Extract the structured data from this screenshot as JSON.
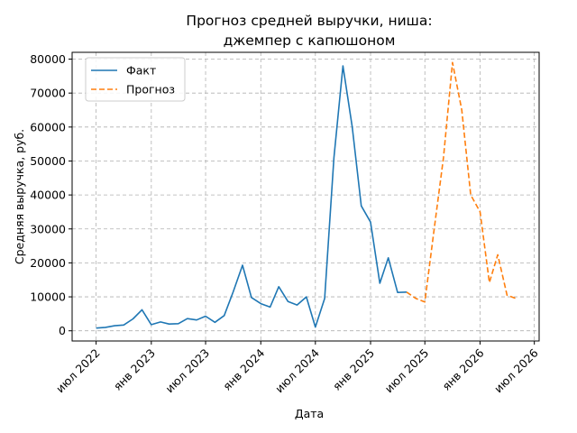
{
  "chart_data": {
    "type": "line",
    "title_lines": [
      "Прогноз средней выручки, ниша:",
      "джемпер с капюшоном"
    ],
    "xlabel": "Дата",
    "ylabel": "Средняя выручка, руб.",
    "x_ticks": [
      "2022-07-01",
      "2023-01-01",
      "2023-07-01",
      "2024-01-01",
      "2024-07-01",
      "2025-01-01",
      "2025-07-01",
      "2026-01-01",
      "2026-07-01"
    ],
    "x_tick_labels": [
      "июл 2022",
      "янв 2023",
      "июл 2023",
      "янв 2024",
      "июл 2024",
      "янв 2025",
      "июл 2025",
      "янв 2026",
      "июл 2026"
    ],
    "xlim": [
      "2022-04-12",
      "2026-07-17"
    ],
    "y_ticks": [
      0,
      10000,
      20000,
      30000,
      40000,
      50000,
      60000,
      70000,
      80000
    ],
    "y_tick_labels": [
      "0",
      "10000",
      "20000",
      "30000",
      "40000",
      "50000",
      "60000",
      "70000",
      "80000"
    ],
    "ylim": [
      -3000,
      82000
    ],
    "grid": true,
    "legend_position": "top-left",
    "series": [
      {
        "name": "Факт",
        "color": "#1f77b4",
        "style": "solid",
        "points": [
          [
            "2022-07-01",
            800
          ],
          [
            "2022-08-01",
            1000
          ],
          [
            "2022-09-01",
            1500
          ],
          [
            "2022-10-01",
            1700
          ],
          [
            "2022-11-01",
            3500
          ],
          [
            "2022-12-01",
            6200
          ],
          [
            "2023-01-01",
            1800
          ],
          [
            "2023-02-01",
            2600
          ],
          [
            "2023-03-01",
            2000
          ],
          [
            "2023-04-01",
            2100
          ],
          [
            "2023-05-01",
            3600
          ],
          [
            "2023-06-01",
            3200
          ],
          [
            "2023-07-01",
            4300
          ],
          [
            "2023-08-01",
            2500
          ],
          [
            "2023-09-01",
            4500
          ],
          [
            "2023-10-01",
            11500
          ],
          [
            "2023-11-01",
            19300
          ],
          [
            "2023-12-01",
            9800
          ],
          [
            "2024-01-01",
            8000
          ],
          [
            "2024-02-01",
            7000
          ],
          [
            "2024-03-01",
            13000
          ],
          [
            "2024-04-01",
            8600
          ],
          [
            "2024-05-01",
            7600
          ],
          [
            "2024-06-01",
            10000
          ],
          [
            "2024-07-01",
            1100
          ],
          [
            "2024-08-01",
            9500
          ],
          [
            "2024-09-01",
            51000
          ],
          [
            "2024-10-01",
            78000
          ],
          [
            "2024-11-01",
            60000
          ],
          [
            "2024-12-01",
            36800
          ],
          [
            "2025-01-01",
            32000
          ],
          [
            "2025-02-01",
            14000
          ],
          [
            "2025-03-01",
            21500
          ],
          [
            "2025-04-01",
            11300
          ],
          [
            "2025-05-01",
            11400
          ]
        ]
      },
      {
        "name": "Прогноз",
        "color": "#ff7f0e",
        "style": "dashed",
        "points": [
          [
            "2025-05-01",
            11400
          ],
          [
            "2025-06-01",
            9500
          ],
          [
            "2025-07-01",
            8500
          ],
          [
            "2025-08-01",
            30000
          ],
          [
            "2025-09-01",
            51000
          ],
          [
            "2025-10-01",
            79000
          ],
          [
            "2025-11-01",
            65000
          ],
          [
            "2025-12-01",
            40000
          ],
          [
            "2026-01-01",
            35000
          ],
          [
            "2026-02-01",
            14200
          ],
          [
            "2026-03-01",
            22400
          ],
          [
            "2026-04-01",
            10500
          ],
          [
            "2026-05-01",
            9500
          ]
        ]
      }
    ]
  }
}
